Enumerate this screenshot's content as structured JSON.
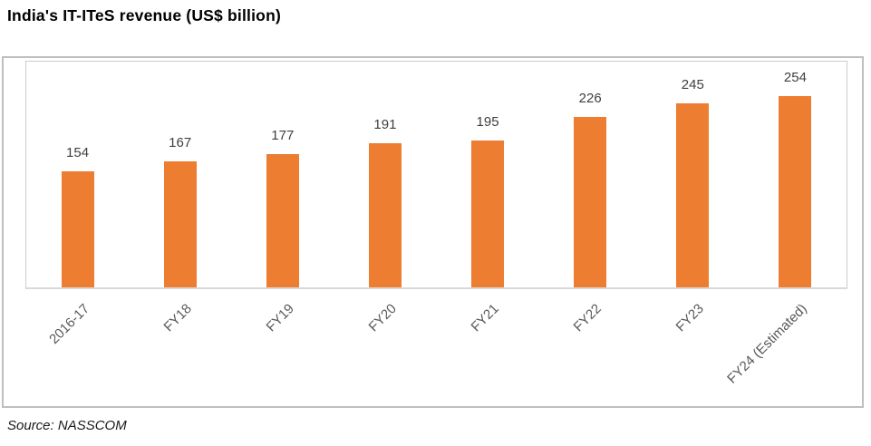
{
  "page": {
    "title": "India's IT-ITeS revenue (US$ billion)",
    "source": "Source: NASSCOM"
  },
  "chart_data": {
    "type": "bar",
    "title": "India's IT-ITeS revenue (US$ billion)",
    "categories": [
      "2016-17",
      "FY18",
      "FY19",
      "FY20",
      "FY21",
      "FY22",
      "FY23",
      "FY24 (Estimated)"
    ],
    "values": [
      154,
      167,
      177,
      191,
      195,
      226,
      245,
      254
    ],
    "unit": "US$ billion",
    "ylim": [
      0,
      300
    ],
    "grid": false,
    "legend": "none",
    "data_labels": true,
    "bar_color": "#ED7D31",
    "data_label_color": "#404040",
    "axis_label_color": "#595959",
    "axis_line_color": "#D9D9D9",
    "frame_border_color": "#BFBFBF",
    "source": "Source: NASSCOM"
  }
}
